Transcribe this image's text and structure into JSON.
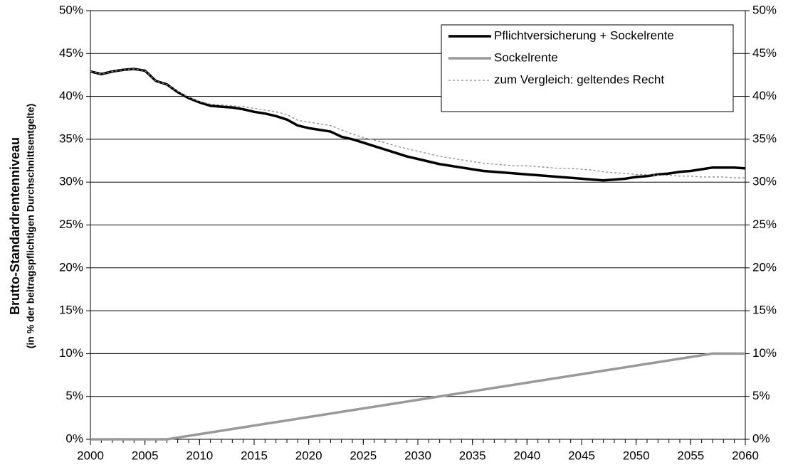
{
  "chart_data": {
    "type": "line",
    "ylabel": "Brutto-Standardrentenniveau",
    "ylabel_sub": "(in % der beitragspflichtigen Durchschnittsentgelte)",
    "x": [
      2000,
      2001,
      2002,
      2003,
      2004,
      2005,
      2006,
      2007,
      2008,
      2009,
      2010,
      2011,
      2012,
      2013,
      2014,
      2015,
      2016,
      2017,
      2018,
      2019,
      2020,
      2021,
      2022,
      2023,
      2024,
      2025,
      2026,
      2027,
      2028,
      2029,
      2030,
      2031,
      2032,
      2033,
      2034,
      2035,
      2036,
      2037,
      2038,
      2039,
      2040,
      2041,
      2042,
      2043,
      2044,
      2045,
      2046,
      2047,
      2048,
      2049,
      2050,
      2051,
      2052,
      2053,
      2054,
      2055,
      2056,
      2057,
      2058,
      2059,
      2060
    ],
    "xlim": [
      2000,
      2060
    ],
    "xticks": [
      2000,
      2005,
      2010,
      2015,
      2020,
      2025,
      2030,
      2035,
      2040,
      2045,
      2050,
      2055,
      2060
    ],
    "ylim": [
      0,
      50
    ],
    "yticks": [
      {
        "value": 0,
        "label": "0%"
      },
      {
        "value": 5,
        "label": "5%"
      },
      {
        "value": 10,
        "label": "10%"
      },
      {
        "value": 15,
        "label": "15%"
      },
      {
        "value": 20,
        "label": "20%"
      },
      {
        "value": 25,
        "label": "25%"
      },
      {
        "value": 30,
        "label": "30%"
      },
      {
        "value": 35,
        "label": "35%"
      },
      {
        "value": 40,
        "label": "40%"
      },
      {
        "value": 45,
        "label": "45%"
      },
      {
        "value": 50,
        "label": "50%"
      }
    ],
    "y2lim": [
      0,
      50
    ],
    "y2ticks": [
      {
        "value": 0,
        "label": "0%"
      },
      {
        "value": 5,
        "label": "5%"
      },
      {
        "value": 10,
        "label": "10%"
      },
      {
        "value": 15,
        "label": "15%"
      },
      {
        "value": 20,
        "label": "20%"
      },
      {
        "value": 25,
        "label": "25%"
      },
      {
        "value": 30,
        "label": "30%"
      },
      {
        "value": 35,
        "label": "35%"
      },
      {
        "value": 40,
        "label": "40%"
      },
      {
        "value": 45,
        "label": "45%"
      },
      {
        "value": 50,
        "label": "50%"
      }
    ],
    "grid": true,
    "legend": "upper right",
    "series": [
      {
        "name": "Pflichtversicherung + Sockelrente",
        "color": "#000000",
        "style": "solid",
        "values": [
          42.9,
          42.6,
          42.9,
          43.1,
          43.2,
          43.0,
          41.8,
          41.4,
          40.5,
          39.8,
          39.3,
          38.9,
          38.8,
          38.7,
          38.5,
          38.2,
          38.0,
          37.7,
          37.3,
          36.6,
          36.3,
          36.1,
          35.9,
          35.3,
          35.0,
          34.6,
          34.2,
          33.8,
          33.4,
          33.0,
          32.7,
          32.4,
          32.1,
          31.9,
          31.7,
          31.5,
          31.3,
          31.2,
          31.1,
          31.0,
          30.9,
          30.8,
          30.7,
          30.6,
          30.5,
          30.4,
          30.3,
          30.2,
          30.3,
          30.4,
          30.6,
          30.7,
          30.9,
          31.0,
          31.2,
          31.3,
          31.5,
          31.7,
          31.7,
          31.7,
          31.6
        ]
      },
      {
        "name": "Sockelrente",
        "color": "#999999",
        "style": "solid",
        "values": [
          0,
          0,
          0,
          0,
          0,
          0,
          0,
          0,
          0.2,
          0.4,
          0.6,
          0.8,
          1.0,
          1.2,
          1.4,
          1.6,
          1.8,
          2.0,
          2.2,
          2.4,
          2.6,
          2.8,
          3.0,
          3.2,
          3.4,
          3.6,
          3.8,
          4.0,
          4.2,
          4.4,
          4.6,
          4.8,
          5.0,
          5.2,
          5.4,
          5.6,
          5.8,
          6.0,
          6.2,
          6.4,
          6.6,
          6.8,
          7.0,
          7.2,
          7.4,
          7.6,
          7.8,
          8.0,
          8.2,
          8.4,
          8.6,
          8.8,
          9.0,
          9.2,
          9.4,
          9.6,
          9.8,
          10,
          10,
          10,
          10
        ]
      },
      {
        "name": "zum Vergleich: geltendes Recht",
        "color": "#888888",
        "style": "dotted",
        "values": [
          42.9,
          42.6,
          42.9,
          43.1,
          43.2,
          43.0,
          41.8,
          41.4,
          40.6,
          39.9,
          39.4,
          39.1,
          39.0,
          38.9,
          38.8,
          38.6,
          38.4,
          38.2,
          37.9,
          37.2,
          37.0,
          36.8,
          36.6,
          36.1,
          35.6,
          35.2,
          34.9,
          34.6,
          34.2,
          33.9,
          33.6,
          33.3,
          33.0,
          32.8,
          32.6,
          32.4,
          32.2,
          32.1,
          32.0,
          31.9,
          31.9,
          31.8,
          31.7,
          31.6,
          31.6,
          31.5,
          31.4,
          31.2,
          31.1,
          31.0,
          30.9,
          30.9,
          30.8,
          30.8,
          30.7,
          30.7,
          30.6,
          30.6,
          30.6,
          30.5,
          30.5
        ]
      }
    ]
  }
}
